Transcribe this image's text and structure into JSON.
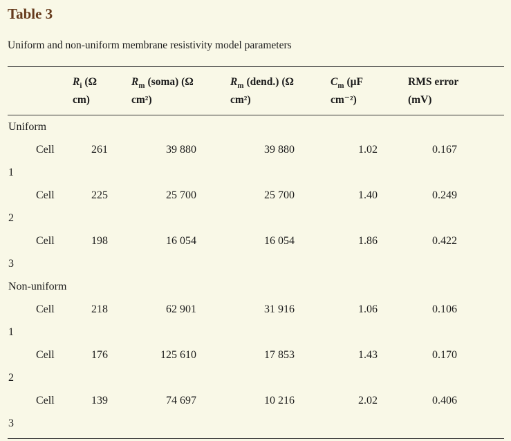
{
  "page": {
    "title": "Table 3",
    "caption": "Uniform and non-uniform membrane resistivity model parameters"
  },
  "colors": {
    "background": "#f9f8e7",
    "title_text": "#653a1c",
    "rule": "#333333"
  },
  "table": {
    "columns": [
      {
        "sym": "",
        "sub": "",
        "rest": "",
        "line2": ""
      },
      {
        "sym": "R",
        "sub": "i",
        "rest": "(Ω",
        "line2": "cm)"
      },
      {
        "sym": "R",
        "sub": "m",
        "rest": "(soma) (Ω",
        "line2": "cm²)"
      },
      {
        "sym": "R",
        "sub": "m",
        "rest": "(dend.) (Ω",
        "line2": "cm²)"
      },
      {
        "sym": "C",
        "sub": "m",
        "rest": "(μF",
        "line2": "cm⁻²)"
      },
      {
        "sym": "",
        "sub": "",
        "rest": "RMS error",
        "line2": "(mV)"
      }
    ],
    "sections": [
      {
        "label": "Uniform",
        "rows": [
          {
            "label": "Cell 1",
            "ri": "261",
            "rm_soma": "39 880",
            "rm_dend": "39 880",
            "cm": "1.02",
            "rms": "0.167"
          },
          {
            "label": "Cell 2",
            "ri": "225",
            "rm_soma": "25 700",
            "rm_dend": "25 700",
            "cm": "1.40",
            "rms": "0.249"
          },
          {
            "label": "Cell 3",
            "ri": "198",
            "rm_soma": "16 054",
            "rm_dend": "16 054",
            "cm": "1.86",
            "rms": "0.422"
          }
        ]
      },
      {
        "label": "Non-uniform",
        "rows": [
          {
            "label": "Cell 1",
            "ri": "218",
            "rm_soma": "62 901",
            "rm_dend": "31 916",
            "cm": "1.06",
            "rms": "0.106"
          },
          {
            "label": "Cell 2",
            "ri": "176",
            "rm_soma": "125 610",
            "rm_dend": "17 853",
            "cm": "1.43",
            "rms": "0.170"
          },
          {
            "label": "Cell 3",
            "ri": "139",
            "rm_soma": "74 697",
            "rm_dend": "10 216",
            "cm": "2.02",
            "rms": "0.406"
          }
        ]
      }
    ]
  }
}
